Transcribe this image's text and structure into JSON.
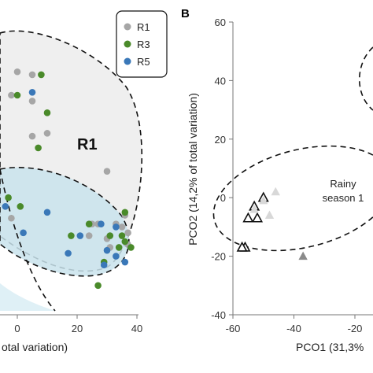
{
  "chart_data": [
    {
      "panel": "",
      "type": "scatter",
      "xlabel": "otal variation)",
      "xlim": [
        -5,
        42
      ],
      "ylim": [
        -40,
        60
      ],
      "x_ticks": [
        "0",
        "20",
        "40"
      ],
      "groups": [
        {
          "label": "R1",
          "color": "#efefef"
        },
        {
          "label": "",
          "color": "#c9e3ec"
        }
      ],
      "legend": {
        "position": "top-right",
        "entries": [
          {
            "name": "R1",
            "color": "#a6a6a6"
          },
          {
            "name": "R3",
            "color": "#4a8a2a"
          },
          {
            "name": "R5",
            "color": "#3a78b8"
          }
        ]
      },
      "series": [
        {
          "name": "R1",
          "color": "#a6a6a6",
          "points": [
            [
              0,
              43
            ],
            [
              5,
              42
            ],
            [
              -2,
              35
            ],
            [
              5,
              33
            ],
            [
              10,
              22
            ],
            [
              5,
              21
            ],
            [
              30,
              9
            ],
            [
              36,
              -6
            ],
            [
              27,
              -9
            ],
            [
              33,
              -9
            ],
            [
              35,
              -10
            ],
            [
              25,
              -9
            ],
            [
              37,
              -12
            ],
            [
              30,
              -14
            ],
            [
              37,
              -16
            ],
            [
              24,
              -13
            ],
            [
              31,
              -17
            ],
            [
              -2,
              -7
            ]
          ]
        },
        {
          "name": "R3",
          "color": "#4a8a2a",
          "points": [
            [
              8,
              42
            ],
            [
              0,
              35
            ],
            [
              10,
              29
            ],
            [
              7,
              17
            ],
            [
              1,
              -3
            ],
            [
              36,
              -5
            ],
            [
              24,
              -9
            ],
            [
              35,
              -13
            ],
            [
              31,
              -13
            ],
            [
              36,
              -15
            ],
            [
              34,
              -17
            ],
            [
              18,
              -13
            ],
            [
              29,
              -22
            ],
            [
              38,
              -17
            ],
            [
              27,
              -30
            ],
            [
              -3,
              0
            ]
          ]
        },
        {
          "name": "R5",
          "color": "#3a78b8",
          "points": [
            [
              5,
              36
            ],
            [
              28,
              -9
            ],
            [
              33,
              -10
            ],
            [
              10,
              -5
            ],
            [
              21,
              -13
            ],
            [
              2,
              -12
            ],
            [
              30,
              -18
            ],
            [
              33,
              -20
            ],
            [
              36,
              -22
            ],
            [
              29,
              -23
            ],
            [
              17,
              -19
            ],
            [
              -4,
              -3
            ]
          ]
        }
      ]
    },
    {
      "panel": "B",
      "type": "scatter",
      "xlabel": "PCO1 (31,3%",
      "ylabel": "PCO2 (14,2% of total variation)",
      "xlim": [
        -60,
        -10
      ],
      "ylim": [
        -40,
        60
      ],
      "x_ticks": [
        "-60",
        "-40",
        "-20"
      ],
      "y_ticks": [
        "60",
        "40",
        "20",
        "0",
        "-20",
        "-40"
      ],
      "annotation": [
        "Rainy",
        "season 1"
      ],
      "series": [
        {
          "name": "open-triangles",
          "color": "#111111",
          "marker": "open-triangle",
          "points": [
            [
              -50,
              0
            ],
            [
              -53,
              -3
            ],
            [
              -55,
              -7
            ],
            [
              -52,
              -7
            ],
            [
              -56,
              -17
            ],
            [
              -57,
              -17
            ]
          ]
        },
        {
          "name": "light-triangles",
          "color": "#d8d8d8",
          "marker": "filled-triangle",
          "points": [
            [
              -46,
              2
            ],
            [
              -50,
              -1
            ],
            [
              -48,
              -6
            ],
            [
              -53,
              -4
            ]
          ]
        },
        {
          "name": "grey-triangles",
          "color": "#8a8a8a",
          "marker": "filled-triangle",
          "points": [
            [
              -37,
              -20
            ]
          ]
        }
      ]
    }
  ]
}
